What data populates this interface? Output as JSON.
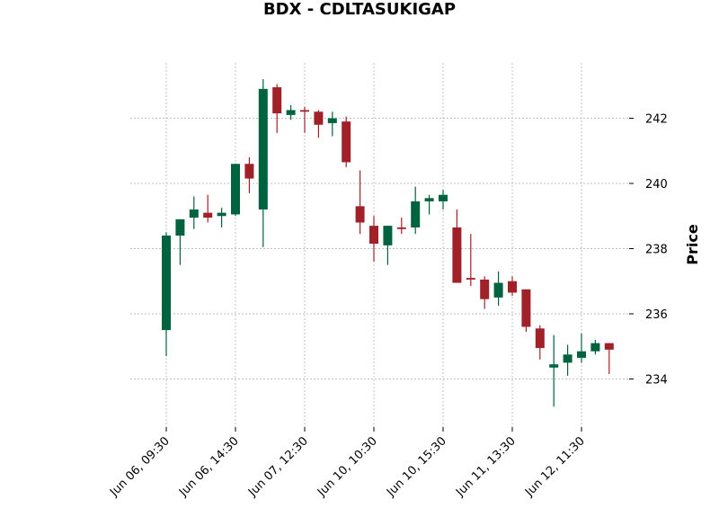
{
  "chart_data": {
    "type": "candlestick",
    "title": "BDX - CDLTASUKIGAP",
    "xlabel": "",
    "ylabel": "Price",
    "ylim": [
      232.6,
      243.8
    ],
    "grid": true,
    "y_ticks": [
      234,
      236,
      238,
      240,
      242
    ],
    "x_ticks": [
      {
        "index": 0,
        "label": "Jun 06, 09:30"
      },
      {
        "index": 5,
        "label": "Jun 06, 14:30"
      },
      {
        "index": 10,
        "label": "Jun 07, 12:30"
      },
      {
        "index": 15,
        "label": "Jun 10, 10:30"
      },
      {
        "index": 20,
        "label": "Jun 10, 15:30"
      },
      {
        "index": 25,
        "label": "Jun 11, 13:30"
      },
      {
        "index": 30,
        "label": "Jun 12, 11:30"
      }
    ],
    "colors": {
      "up": "#006340",
      "down": "#a02128"
    },
    "candles": [
      {
        "open": 235.5,
        "high": 238.5,
        "low": 234.7,
        "close": 238.4
      },
      {
        "open": 238.4,
        "high": 238.9,
        "low": 237.5,
        "close": 238.9
      },
      {
        "open": 238.95,
        "high": 239.6,
        "low": 238.6,
        "close": 239.2
      },
      {
        "open": 239.1,
        "high": 239.65,
        "low": 238.8,
        "close": 238.95
      },
      {
        "open": 239.0,
        "high": 239.25,
        "low": 238.65,
        "close": 239.1
      },
      {
        "open": 239.05,
        "high": 240.6,
        "low": 239.0,
        "close": 240.6
      },
      {
        "open": 240.6,
        "high": 240.8,
        "low": 239.7,
        "close": 240.15
      },
      {
        "open": 239.2,
        "high": 243.2,
        "low": 238.05,
        "close": 242.9
      },
      {
        "open": 242.95,
        "high": 243.05,
        "low": 241.55,
        "close": 242.15
      },
      {
        "open": 242.1,
        "high": 242.4,
        "low": 241.95,
        "close": 242.25
      },
      {
        "open": 242.25,
        "high": 242.35,
        "low": 241.55,
        "close": 242.2
      },
      {
        "open": 242.2,
        "high": 242.25,
        "low": 241.4,
        "close": 241.8
      },
      {
        "open": 241.85,
        "high": 242.2,
        "low": 241.45,
        "close": 242.0
      },
      {
        "open": 241.9,
        "high": 242.05,
        "low": 240.5,
        "close": 240.65
      },
      {
        "open": 239.3,
        "high": 240.4,
        "low": 238.45,
        "close": 238.8
      },
      {
        "open": 238.7,
        "high": 239.0,
        "low": 237.6,
        "close": 238.15
      },
      {
        "open": 238.1,
        "high": 238.7,
        "low": 237.5,
        "close": 238.7
      },
      {
        "open": 238.65,
        "high": 238.95,
        "low": 238.45,
        "close": 238.6
      },
      {
        "open": 238.65,
        "high": 239.9,
        "low": 238.45,
        "close": 239.45
      },
      {
        "open": 239.45,
        "high": 239.65,
        "low": 239.05,
        "close": 239.55
      },
      {
        "open": 239.45,
        "high": 239.8,
        "low": 239.2,
        "close": 239.65
      },
      {
        "open": 238.65,
        "high": 239.2,
        "low": 236.95,
        "close": 236.95
      },
      {
        "open": 237.1,
        "high": 238.45,
        "low": 236.85,
        "close": 237.05
      },
      {
        "open": 237.05,
        "high": 237.15,
        "low": 236.15,
        "close": 236.45
      },
      {
        "open": 236.5,
        "high": 237.3,
        "low": 236.25,
        "close": 236.95
      },
      {
        "open": 237.0,
        "high": 237.15,
        "low": 236.55,
        "close": 236.65
      },
      {
        "open": 236.75,
        "high": 236.75,
        "low": 235.45,
        "close": 235.6
      },
      {
        "open": 235.55,
        "high": 235.65,
        "low": 234.6,
        "close": 234.95
      },
      {
        "open": 234.35,
        "high": 235.35,
        "low": 233.15,
        "close": 234.45
      },
      {
        "open": 234.5,
        "high": 235.05,
        "low": 234.1,
        "close": 234.75
      },
      {
        "open": 234.65,
        "high": 235.4,
        "low": 234.5,
        "close": 234.85
      },
      {
        "open": 234.85,
        "high": 235.2,
        "low": 234.75,
        "close": 235.1
      },
      {
        "open": 235.1,
        "high": 235.1,
        "low": 234.15,
        "close": 234.9
      }
    ]
  }
}
